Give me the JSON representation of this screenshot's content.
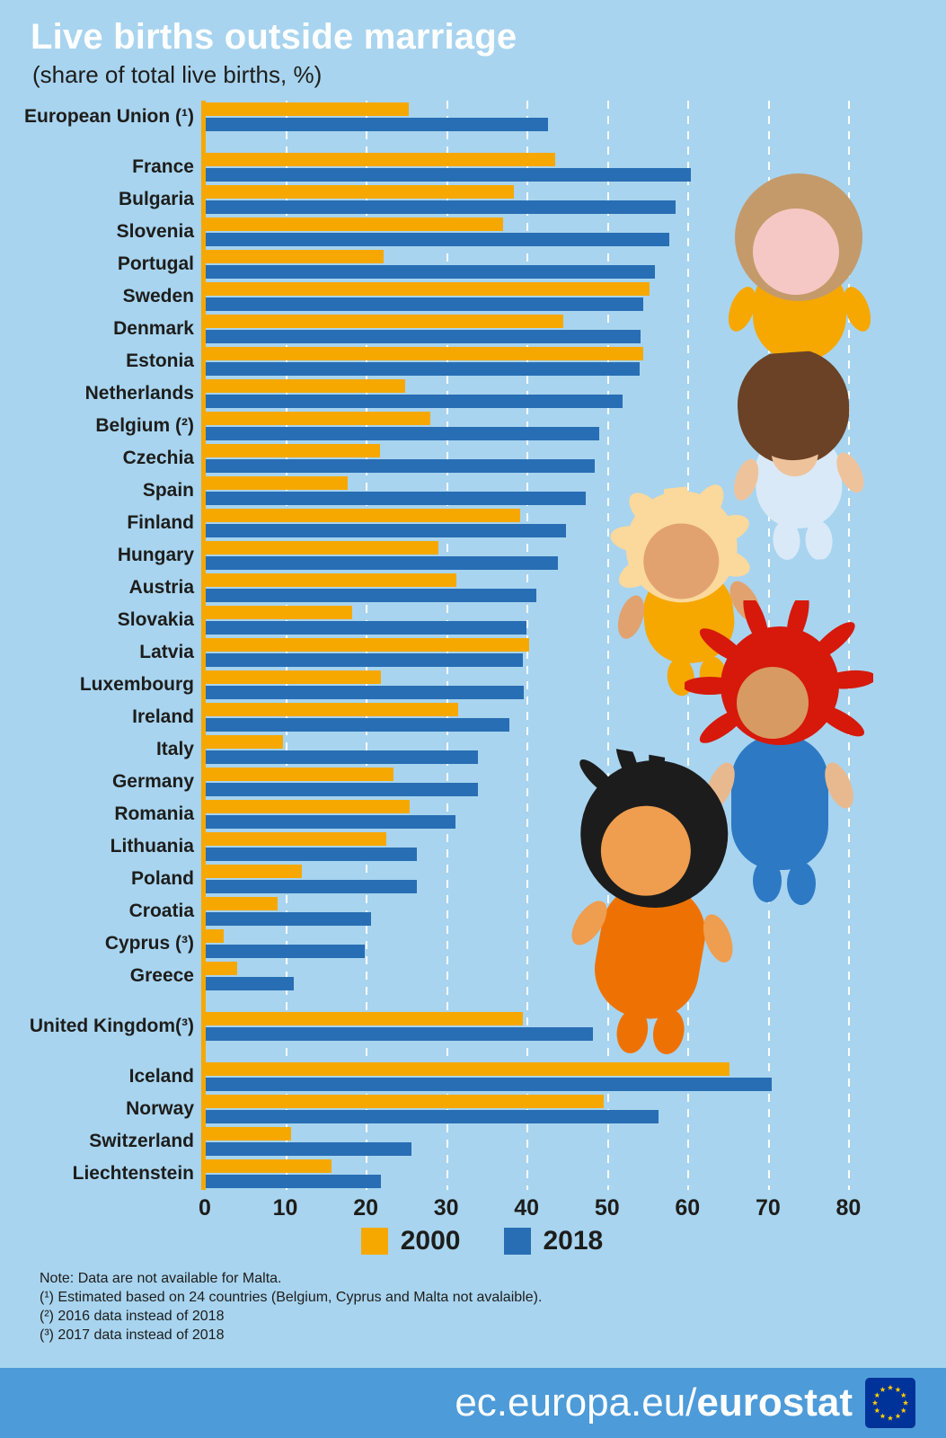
{
  "page": {
    "background": "#a8d4ef"
  },
  "header": {
    "title": "Live births outside marriage",
    "subtitle": "(share of total live births, %)"
  },
  "chart_data": {
    "type": "bar",
    "orientation": "horizontal",
    "title": "Live births outside marriage",
    "subtitle": "(share of total live births, %)",
    "unit": "% of total live births",
    "xlim": [
      0,
      80
    ],
    "xticks": [
      0,
      10,
      20,
      30,
      40,
      50,
      60,
      70,
      80
    ],
    "grid": "dashed-vertical-white",
    "legend_position": "bottom",
    "series": [
      "2000",
      "2018"
    ],
    "colors": {
      "2000": "#f6a800",
      "2018": "#286eb4"
    },
    "groups": [
      {
        "rows": [
          {
            "label": "European Union (¹)",
            "values": [
              25.4,
              42.7
            ]
          }
        ]
      },
      {
        "rows": [
          {
            "label": "France",
            "values": [
              43.6,
              60.4
            ]
          },
          {
            "label": "Bulgaria",
            "values": [
              38.4,
              58.5
            ]
          },
          {
            "label": "Slovenia",
            "values": [
              37.1,
              57.7
            ]
          },
          {
            "label": "Portugal",
            "values": [
              22.2,
              55.9
            ]
          },
          {
            "label": "Sweden",
            "values": [
              55.3,
              54.5
            ]
          },
          {
            "label": "Denmark",
            "values": [
              44.6,
              54.2
            ]
          },
          {
            "label": "Estonia",
            "values": [
              54.5,
              54.1
            ]
          },
          {
            "label": "Netherlands",
            "values": [
              24.9,
              51.9
            ]
          },
          {
            "label": "Belgium (²)",
            "values": [
              28.0,
              49.0
            ]
          },
          {
            "label": "Czechia",
            "values": [
              21.8,
              48.5
            ]
          },
          {
            "label": "Spain",
            "values": [
              17.7,
              47.3
            ]
          },
          {
            "label": "Finland",
            "values": [
              39.2,
              44.9
            ]
          },
          {
            "label": "Hungary",
            "values": [
              29.0,
              43.9
            ]
          },
          {
            "label": "Austria",
            "values": [
              31.3,
              41.2
            ]
          },
          {
            "label": "Slovakia",
            "values": [
              18.3,
              40.0
            ]
          },
          {
            "label": "Latvia",
            "values": [
              40.3,
              39.5
            ]
          },
          {
            "label": "Luxembourg",
            "values": [
              21.9,
              39.6
            ]
          },
          {
            "label": "Ireland",
            "values": [
              31.5,
              37.9
            ]
          },
          {
            "label": "Italy",
            "values": [
              9.7,
              34.0
            ]
          },
          {
            "label": "Germany",
            "values": [
              23.4,
              33.9
            ]
          },
          {
            "label": "Romania",
            "values": [
              25.5,
              31.2
            ]
          },
          {
            "label": "Lithuania",
            "values": [
              22.6,
              26.4
            ]
          },
          {
            "label": "Poland",
            "values": [
              12.1,
              26.4
            ]
          },
          {
            "label": "Croatia",
            "values": [
              9.0,
              20.7
            ]
          },
          {
            "label": "Cyprus (³)",
            "values": [
              2.3,
              19.9
            ]
          },
          {
            "label": "Greece",
            "values": [
              4.0,
              11.1
            ]
          }
        ]
      },
      {
        "rows": [
          {
            "label": "United Kingdom(³)",
            "values": [
              39.5,
              48.2
            ]
          }
        ]
      },
      {
        "rows": [
          {
            "label": "Iceland",
            "values": [
              65.2,
              70.5
            ]
          },
          {
            "label": "Norway",
            "values": [
              49.6,
              56.4
            ]
          },
          {
            "label": "Switzerland",
            "values": [
              10.7,
              25.7
            ]
          },
          {
            "label": "Liechtenstein",
            "values": [
              15.7,
              21.9
            ]
          }
        ]
      }
    ]
  },
  "legend": {
    "items": [
      {
        "label": "2000",
        "color": "#f6a800"
      },
      {
        "label": "2018",
        "color": "#286eb4"
      }
    ]
  },
  "notes": {
    "line1": "Note: Data are not available for Malta.",
    "line2": "(¹) Estimated based on 24 countries (Belgium, Cyprus and Malta not avalaible).",
    "line3": "(²) 2016 data instead of 2018",
    "line4": "(³) 2017 data instead of 2018"
  },
  "footer": {
    "url_regular": "ec.europa.eu/",
    "url_bold": "eurostat",
    "flag_icon": "eu-flag-icon"
  }
}
